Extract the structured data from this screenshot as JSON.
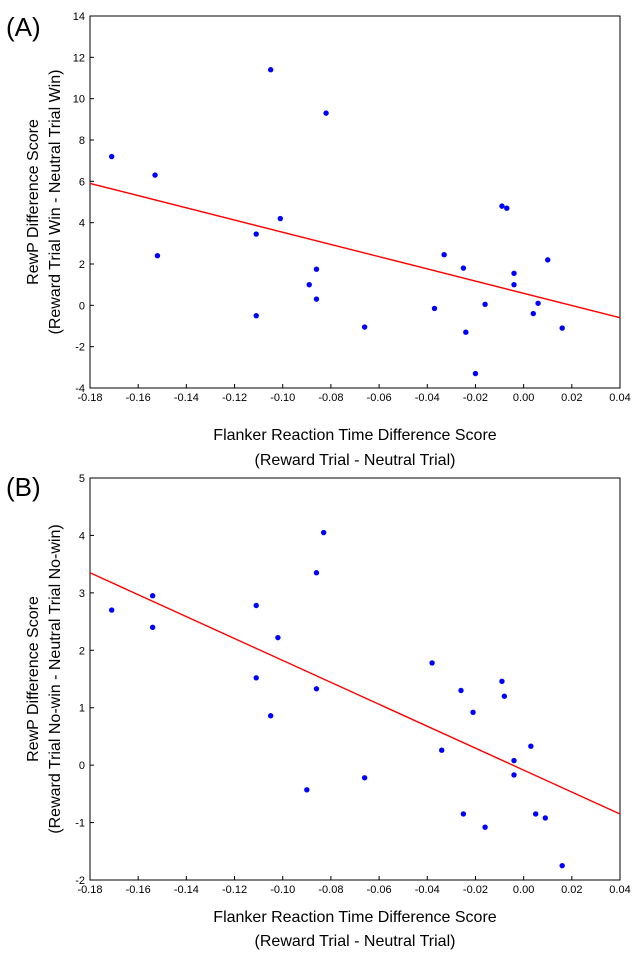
{
  "chart_data": [
    {
      "type": "scatter",
      "panel_label": "(A)",
      "xlabel": "Flanker Reaction Time Difference Score",
      "xlabel_sub": "(Reward Trial - Neutral Trial)",
      "ylabel": "RewP Difference Score",
      "ylabel_sub": "(Reward Trial Win - Neutral Trial Win)",
      "xlim": [
        -0.18,
        0.04
      ],
      "ylim": [
        -4,
        14
      ],
      "xticks": [
        "-0.18",
        "-0.16",
        "-0.14",
        "-0.12",
        "-0.10",
        "-0.08",
        "-0.06",
        "-0.04",
        "-0.02",
        "0.00",
        "0.02",
        "0.04"
      ],
      "yticks": [
        "-4",
        "-2",
        "0",
        "2",
        "4",
        "6",
        "8",
        "10",
        "12",
        "14"
      ],
      "grid": false,
      "point_color": "#0000ff",
      "fit_color": "#ff0000",
      "points": [
        {
          "x": -0.171,
          "y": 7.2
        },
        {
          "x": -0.153,
          "y": 6.3
        },
        {
          "x": -0.152,
          "y": 2.4
        },
        {
          "x": -0.111,
          "y": 3.45
        },
        {
          "x": -0.111,
          "y": -0.5
        },
        {
          "x": -0.105,
          "y": 11.4
        },
        {
          "x": -0.101,
          "y": 4.2
        },
        {
          "x": -0.089,
          "y": 1.0
        },
        {
          "x": -0.086,
          "y": 1.75
        },
        {
          "x": -0.086,
          "y": 0.3
        },
        {
          "x": -0.082,
          "y": 9.3
        },
        {
          "x": -0.066,
          "y": -1.05
        },
        {
          "x": -0.037,
          "y": -0.15
        },
        {
          "x": -0.033,
          "y": 2.45
        },
        {
          "x": -0.025,
          "y": 1.8
        },
        {
          "x": -0.024,
          "y": -1.3
        },
        {
          "x": -0.02,
          "y": -3.3
        },
        {
          "x": -0.016,
          "y": 0.05
        },
        {
          "x": -0.009,
          "y": 4.8
        },
        {
          "x": -0.007,
          "y": 4.7
        },
        {
          "x": -0.004,
          "y": 1.55
        },
        {
          "x": -0.004,
          "y": 1.0
        },
        {
          "x": 0.004,
          "y": -0.4
        },
        {
          "x": 0.006,
          "y": 0.1
        },
        {
          "x": 0.01,
          "y": 2.2
        },
        {
          "x": 0.016,
          "y": -1.1
        }
      ],
      "fit_line": [
        {
          "x": -0.18,
          "y": 5.9
        },
        {
          "x": 0.04,
          "y": -0.6
        }
      ]
    },
    {
      "type": "scatter",
      "panel_label": "(B)",
      "xlabel": "Flanker Reaction Time Difference Score",
      "xlabel_sub": "(Reward Trial - Neutral Trial)",
      "ylabel": "RewP Difference Score",
      "ylabel_sub": "(Reward Trial No-win - Neutral Trial No-win)",
      "xlim": [
        -0.18,
        0.04
      ],
      "ylim": [
        -2,
        5
      ],
      "xticks": [
        "-0.18",
        "-0.16",
        "-0.14",
        "-0.12",
        "-0.10",
        "-0.08",
        "-0.06",
        "-0.04",
        "-0.02",
        "0.00",
        "0.02",
        "0.04"
      ],
      "yticks": [
        "-2",
        "-1",
        "0",
        "1",
        "2",
        "3",
        "4",
        "5"
      ],
      "grid": false,
      "point_color": "#0000ff",
      "fit_color": "#ff0000",
      "points": [
        {
          "x": -0.171,
          "y": 2.7
        },
        {
          "x": -0.154,
          "y": 2.95
        },
        {
          "x": -0.154,
          "y": 2.4
        },
        {
          "x": -0.111,
          "y": 2.78
        },
        {
          "x": -0.111,
          "y": 1.52
        },
        {
          "x": -0.105,
          "y": 0.86
        },
        {
          "x": -0.102,
          "y": 2.22
        },
        {
          "x": -0.09,
          "y": -0.43
        },
        {
          "x": -0.086,
          "y": 3.35
        },
        {
          "x": -0.086,
          "y": 1.33
        },
        {
          "x": -0.083,
          "y": 4.05
        },
        {
          "x": -0.066,
          "y": -0.22
        },
        {
          "x": -0.038,
          "y": 1.78
        },
        {
          "x": -0.034,
          "y": 0.26
        },
        {
          "x": -0.026,
          "y": 1.3
        },
        {
          "x": -0.025,
          "y": -0.85
        },
        {
          "x": -0.021,
          "y": 0.92
        },
        {
          "x": -0.016,
          "y": -1.08
        },
        {
          "x": -0.009,
          "y": 1.46
        },
        {
          "x": -0.008,
          "y": 1.2
        },
        {
          "x": -0.004,
          "y": 0.08
        },
        {
          "x": -0.004,
          "y": -0.17
        },
        {
          "x": 0.003,
          "y": 0.33
        },
        {
          "x": 0.005,
          "y": -0.85
        },
        {
          "x": 0.009,
          "y": -0.92
        },
        {
          "x": 0.016,
          "y": -1.75
        }
      ],
      "fit_line": [
        {
          "x": -0.18,
          "y": 3.35
        },
        {
          "x": 0.04,
          "y": -0.85
        }
      ]
    }
  ]
}
